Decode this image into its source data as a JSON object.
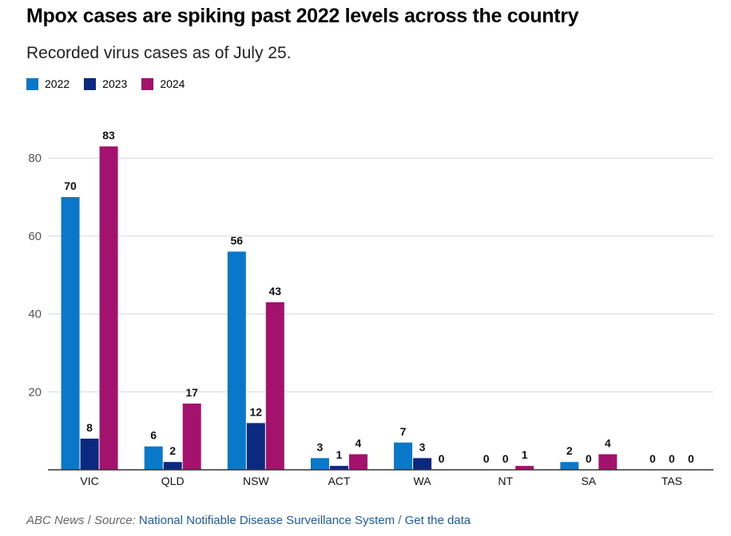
{
  "header": {
    "title": "Mpox cases are spiking past 2022 levels across the country",
    "subtitle": "Recorded virus cases as of July 25."
  },
  "colors": {
    "s2022": "#0a78c8",
    "s2023": "#0b2a7f",
    "s2024": "#a3126c",
    "grid": "#d7d7d7",
    "axis": "#333333"
  },
  "chart_data": {
    "type": "bar",
    "title": "Mpox cases are spiking past 2022 levels across the country",
    "subtitle": "Recorded virus cases as of July 25.",
    "xlabel": "",
    "ylabel": "",
    "ylim": [
      0,
      83
    ],
    "yticks": [
      20,
      40,
      60,
      80
    ],
    "grid": true,
    "legend_position": "top-left",
    "categories": [
      "VIC",
      "QLD",
      "NSW",
      "ACT",
      "WA",
      "NT",
      "SA",
      "TAS"
    ],
    "series": [
      {
        "name": "2022",
        "values": [
          70,
          6,
          56,
          3,
          7,
          0,
          2,
          0
        ]
      },
      {
        "name": "2023",
        "values": [
          8,
          2,
          12,
          1,
          3,
          0,
          0,
          0
        ]
      },
      {
        "name": "2024",
        "values": [
          83,
          17,
          43,
          4,
          0,
          1,
          4,
          0
        ]
      }
    ]
  },
  "footer": {
    "outlet": "ABC News",
    "separator": " / ",
    "source_label": "Source:",
    "source_name": "National Notifiable Disease Surveillance System",
    "separator2": " / ",
    "data_link": "Get the data"
  }
}
